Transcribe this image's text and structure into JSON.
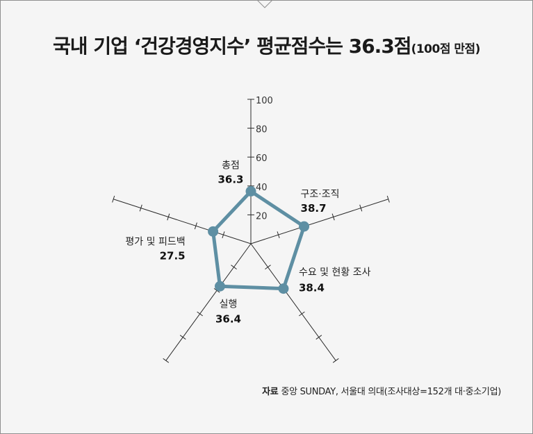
{
  "title": {
    "main": "국내 기업 ‘건강경영지수’ 평균점수는 36.3점",
    "sub": "(100점 만점)"
  },
  "source": {
    "prefix": "자료",
    "text": "중앙 SUNDAY, 서울대 의대(조사대상=152개 대·중소기업)"
  },
  "chart_data": {
    "type": "radar",
    "title": "국내 기업 ‘건강경영지수’ 평균점수는 36.3점",
    "subtitle": "(100점 만점)",
    "axis_ticks": [
      "20",
      "40",
      "60",
      "80",
      "100"
    ],
    "range": [
      0,
      100
    ],
    "categories": [
      "총점",
      "구조·조직",
      "수요 및 현황 조사",
      "실행",
      "평가 및 피드백"
    ],
    "values": [
      36.3,
      38.7,
      38.4,
      36.4,
      27.5
    ],
    "value_labels": [
      "36.3",
      "38.7",
      "38.4",
      "36.4",
      "27.5"
    ],
    "colors": {
      "series": "#5e8fa3",
      "axis": "#2a2a2a",
      "background": "#f5f5f5"
    }
  }
}
